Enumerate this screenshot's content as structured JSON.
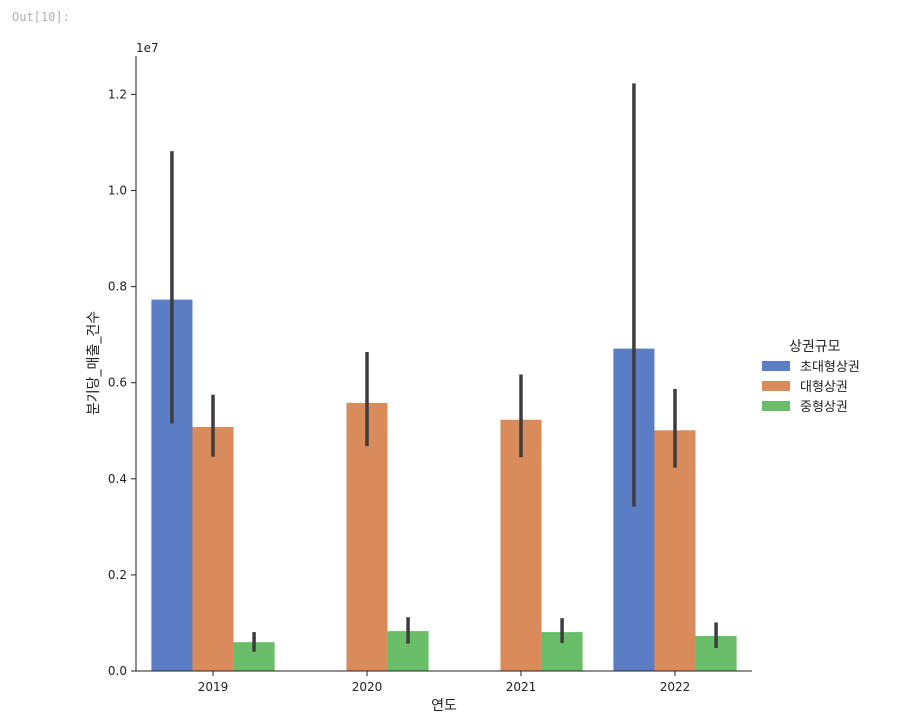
{
  "cell": {
    "output_prompt": "Out[10]:"
  },
  "chart_data": {
    "type": "bar",
    "title": "",
    "xlabel": "연도",
    "ylabel": "분기당_매출_건수",
    "offset_label": "1e7",
    "categories": [
      "2019",
      "2020",
      "2021",
      "2022"
    ],
    "ylim": [
      0,
      12800000
    ],
    "yticks": [
      0,
      2000000,
      4000000,
      6000000,
      8000000,
      10000000,
      12000000
    ],
    "ytick_labels": [
      "0.0",
      "0.2",
      "0.4",
      "0.6",
      "0.8",
      "1.0",
      "1.2"
    ],
    "legend": {
      "title": "상권규모",
      "position": "center-right"
    },
    "series": [
      {
        "name": "초대형상권",
        "color": "#5a7dc3",
        "values": [
          7730000,
          null,
          null,
          6710000
        ],
        "ci_low": [
          5150000,
          null,
          null,
          3420000
        ],
        "ci_high": [
          10820000,
          null,
          null,
          12230000
        ]
      },
      {
        "name": "대형상권",
        "color": "#d98b5c",
        "values": [
          5080000,
          5580000,
          5230000,
          5010000
        ],
        "ci_low": [
          4460000,
          4680000,
          4450000,
          4230000
        ],
        "ci_high": [
          5750000,
          6640000,
          6170000,
          5870000
        ]
      },
      {
        "name": "중형상권",
        "color": "#6abe6a",
        "values": [
          600000,
          830000,
          810000,
          730000
        ],
        "ci_low": [
          400000,
          570000,
          580000,
          480000
        ],
        "ci_high": [
          810000,
          1120000,
          1100000,
          1010000
        ]
      }
    ]
  }
}
